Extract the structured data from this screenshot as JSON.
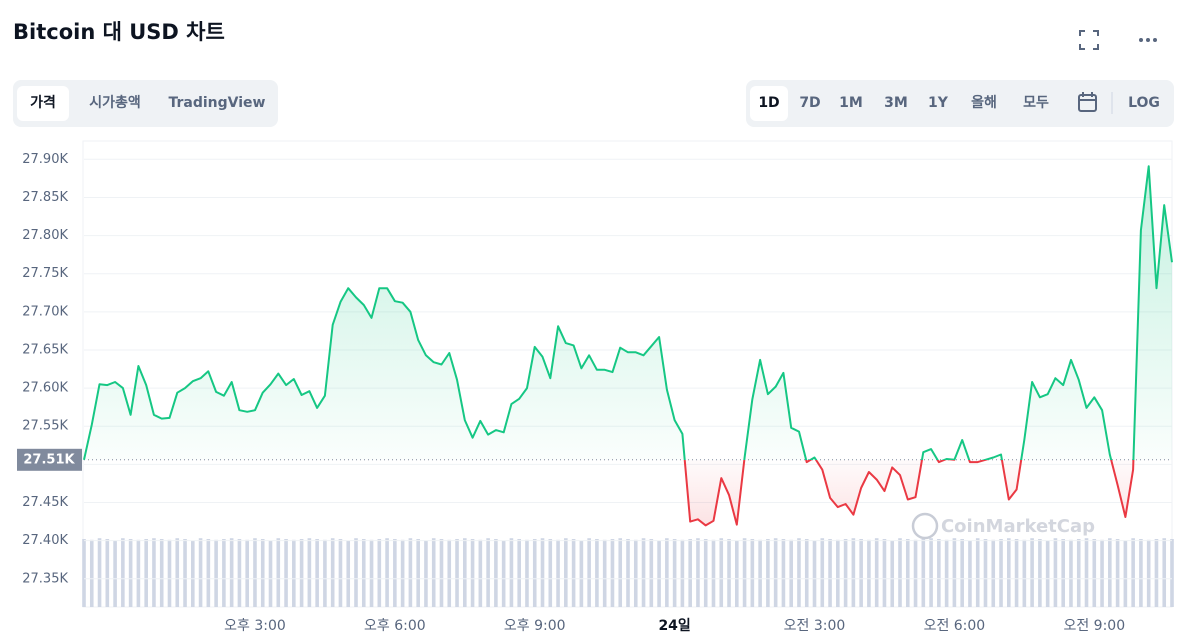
{
  "ui": {
    "tabs": [
      "가격",
      "시가총액",
      "TradingView"
    ],
    "active_tab": 0,
    "ranges": [
      "1D",
      "7D",
      "1M",
      "3M",
      "1Y",
      "올해",
      "모두"
    ],
    "active_range": 0,
    "log": "LOG"
  },
  "chart_data": {
    "type": "line",
    "title": "Bitcoin 대 USD 차트",
    "watermark": "CoinMarketCap",
    "categories": [
      null,
      null,
      null,
      null,
      null,
      null,
      null,
      null,
      null,
      null,
      null,
      null,
      null,
      null,
      null,
      null,
      null,
      null,
      null,
      null,
      null,
      null,
      "오후 3:00",
      null,
      null,
      null,
      null,
      null,
      null,
      null,
      null,
      null,
      null,
      null,
      null,
      null,
      null,
      null,
      null,
      null,
      "오후 6:00",
      null,
      null,
      null,
      null,
      null,
      null,
      null,
      null,
      null,
      null,
      null,
      null,
      null,
      null,
      null,
      null,
      null,
      "오후 9:00",
      null,
      null,
      null,
      null,
      null,
      null,
      null,
      null,
      null,
      null,
      null,
      null,
      null,
      null,
      null,
      null,
      null,
      "24일",
      null,
      null,
      null,
      null,
      null,
      null,
      null,
      null,
      null,
      null,
      null,
      null,
      null,
      null,
      null,
      null,
      null,
      "오전 3:00",
      null,
      null,
      null,
      null,
      null,
      null,
      null,
      null,
      null,
      null,
      null,
      null,
      null,
      null,
      null,
      null,
      null,
      "오전 6:00",
      null,
      null,
      null,
      null,
      null,
      null,
      null,
      null,
      null,
      null,
      null,
      null,
      null,
      null,
      null,
      null,
      null,
      "오전 9:00",
      null,
      null,
      null,
      null,
      null,
      null,
      null,
      null,
      null,
      null
    ],
    "bold_category": 76,
    "values": [
      27506,
      27552,
      27605,
      27604,
      27608,
      27600,
      27565,
      27629,
      27604,
      27565,
      27560,
      27561,
      27594,
      27600,
      27609,
      27613,
      27622,
      27595,
      27590,
      27608,
      27571,
      27569,
      27571,
      27594,
      27605,
      27619,
      27604,
      27612,
      27591,
      27596,
      27574,
      27590,
      27683,
      27713,
      27731,
      27719,
      27709,
      27692,
      27731,
      27731,
      27714,
      27712,
      27700,
      27663,
      27643,
      27634,
      27631,
      27646,
      27611,
      27558,
      27535,
      27557,
      27539,
      27545,
      27542,
      27579,
      27586,
      27600,
      27654,
      27641,
      27613,
      27681,
      27659,
      27656,
      27626,
      27643,
      27624,
      27624,
      27621,
      27653,
      27647,
      27647,
      27643,
      27655,
      27667,
      27598,
      27558,
      27540,
      27425,
      27428,
      27420,
      27426,
      27482,
      27460,
      27421,
      27509,
      27585,
      27637,
      27592,
      27602,
      27620,
      27548,
      27543,
      27503,
      27509,
      27493,
      27456,
      27444,
      27448,
      27434,
      27469,
      27490,
      27480,
      27465,
      27496,
      27486,
      27454,
      27457,
      27516,
      27520,
      27503,
      27507,
      27506,
      27532,
      27503,
      27503,
      27506,
      27509,
      27513,
      27454,
      27467,
      27532,
      27608,
      27588,
      27592,
      27613,
      27604,
      27637,
      27611,
      27574,
      27588,
      27571,
      27513,
      27473,
      27431,
      27493,
      27807,
      27891,
      27731,
      27840,
      27765
    ],
    "baseline": {
      "value": 27506,
      "label": "27.51K"
    },
    "color_up": "#16c784",
    "color_down": "#ea3943",
    "ylim": [
      27313,
      27924
    ],
    "yticks": [
      {
        "value": 27350,
        "label": "27.35K"
      },
      {
        "value": 27400,
        "label": "27.40K"
      },
      {
        "value": 27450,
        "label": "27.45K"
      },
      {
        "value": 27500,
        "label": "27.50K"
      },
      {
        "value": 27550,
        "label": "27.55K"
      },
      {
        "value": 27600,
        "label": "27.60K"
      },
      {
        "value": 27650,
        "label": "27.65K"
      },
      {
        "value": 27700,
        "label": "27.70K"
      },
      {
        "value": 27750,
        "label": "27.75K"
      },
      {
        "value": 27800,
        "label": "27.80K"
      },
      {
        "value": 27850,
        "label": "27.85K"
      },
      {
        "value": 27900,
        "label": "27.90K"
      }
    ],
    "grid": true,
    "volume": {
      "color": "#cfd6e4",
      "lim": [
        0,
        100
      ],
      "values": [
        85,
        84,
        86,
        85,
        83,
        86,
        85,
        84,
        85,
        86,
        85,
        84,
        86,
        85,
        83,
        86,
        85,
        84,
        85,
        86,
        85,
        84,
        86,
        85,
        83,
        86,
        85,
        84,
        85,
        86,
        85,
        84,
        86,
        85,
        83,
        86,
        85,
        84,
        85,
        86,
        85,
        84,
        86,
        85,
        83,
        86,
        85,
        84,
        85,
        86,
        85,
        84,
        86,
        85,
        83,
        86,
        85,
        84,
        85,
        86,
        85,
        84,
        86,
        85,
        83,
        86,
        85,
        84,
        85,
        86,
        85,
        84,
        86,
        85,
        83,
        86,
        85,
        84,
        85,
        86,
        85,
        84,
        86,
        85,
        83,
        86,
        85,
        84,
        85,
        86,
        85,
        84,
        86,
        85,
        83,
        86,
        85,
        84,
        85,
        86,
        85,
        84,
        86,
        85,
        83,
        86,
        85,
        84,
        85,
        86,
        85,
        84,
        86,
        85,
        83,
        86,
        85,
        84,
        85,
        86,
        85,
        84,
        86,
        85,
        83,
        86,
        85,
        84,
        85,
        86,
        85,
        84,
        86,
        85,
        83,
        86,
        85,
        84,
        85,
        86,
        85
      ]
    }
  }
}
